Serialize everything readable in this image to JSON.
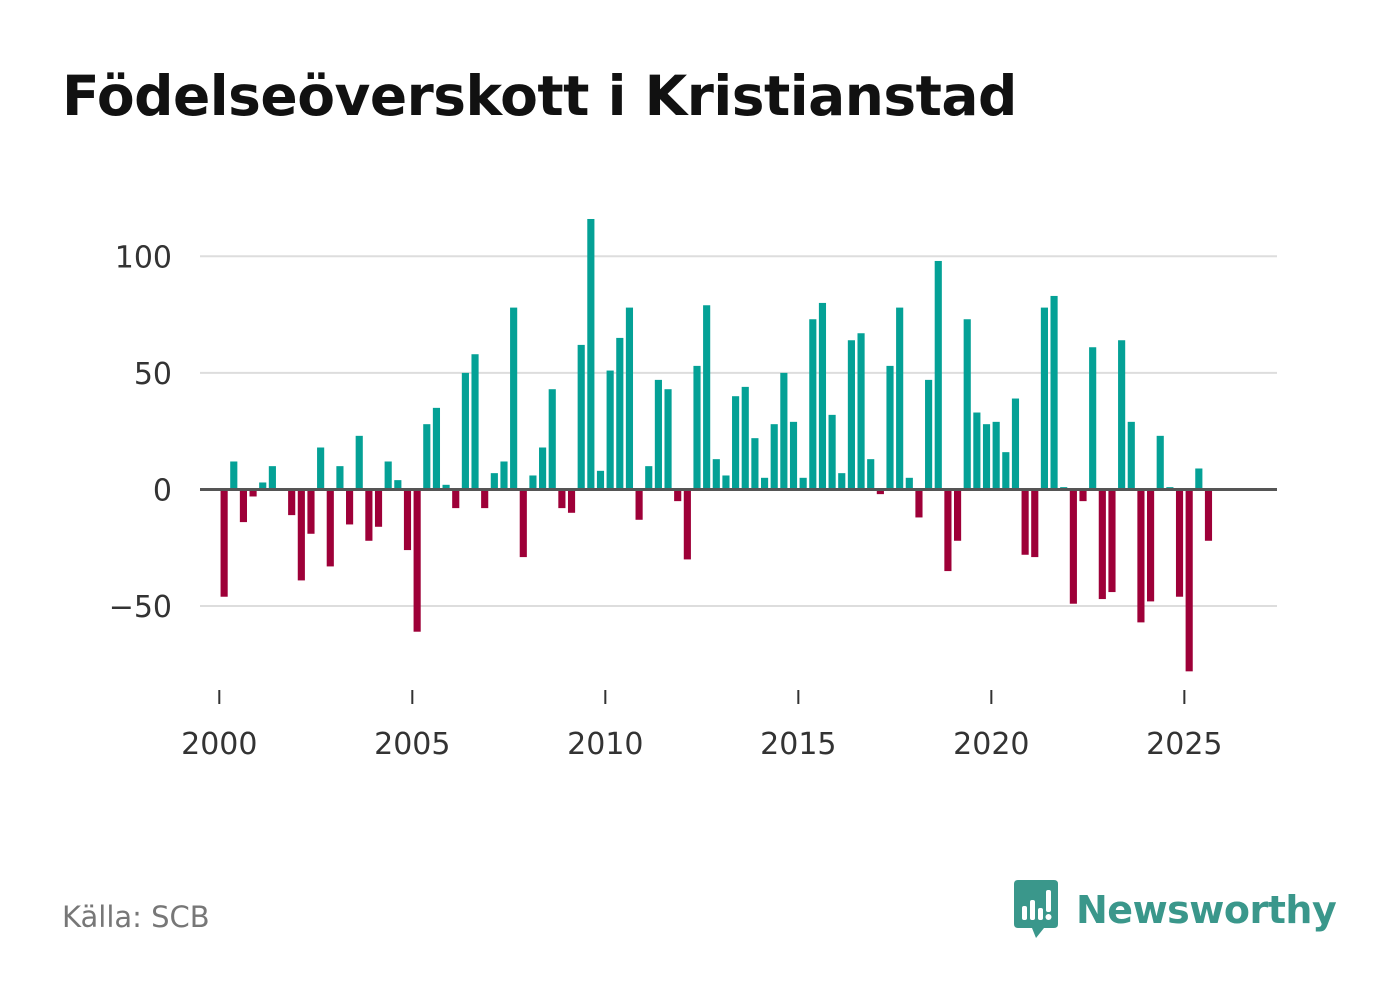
{
  "title": "Födelseöverskott i Kristianstad",
  "source": "Källa: SCB",
  "brand": {
    "name": "Newsworthy",
    "icon": "newsworthy-logo-icon",
    "color": "#3a978b"
  },
  "colors": {
    "positive": "#04a196",
    "negative": "#9e0038",
    "grid": "#dddddd",
    "zero_line": "#555555"
  },
  "chart_data": {
    "type": "bar",
    "title": "Födelseöverskott i Kristianstad",
    "xlabel": "",
    "ylabel": "",
    "frequency": "quarterly",
    "start": 2000.125,
    "step": 0.25,
    "x_ticks": [
      2000,
      2005,
      2010,
      2015,
      2020,
      2025
    ],
    "x_tick_labels": [
      "2000",
      "2005",
      "2010",
      "2015",
      "2020",
      "2025"
    ],
    "y_ticks": [
      -50,
      0,
      50,
      100
    ],
    "y_tick_labels": [
      "−50",
      "0",
      "50",
      "100"
    ],
    "xlim": [
      1999.5,
      2027.4
    ],
    "ylim": [
      -86,
      122
    ],
    "values": [
      -46,
      12,
      -14,
      -3,
      3,
      10,
      0,
      -11,
      -39,
      -19,
      18,
      -33,
      10,
      -15,
      23,
      -22,
      -16,
      12,
      4,
      -26,
      -61,
      28,
      35,
      2,
      -8,
      50,
      58,
      -8,
      7,
      12,
      78,
      -29,
      6,
      18,
      43,
      -8,
      -10,
      62,
      116,
      8,
      51,
      65,
      78,
      -13,
      10,
      47,
      43,
      -5,
      -30,
      53,
      79,
      13,
      6,
      40,
      44,
      22,
      5,
      28,
      50,
      29,
      5,
      73,
      80,
      32,
      7,
      64,
      67,
      13,
      -2,
      53,
      78,
      5,
      -12,
      47,
      98,
      -35,
      -22,
      73,
      33,
      28,
      29,
      16,
      39,
      -28,
      -29,
      78,
      83,
      1,
      -49,
      -5,
      61,
      -47,
      -44,
      64,
      29,
      -57,
      -48,
      23,
      1,
      -46,
      -78,
      9,
      -22
    ]
  }
}
